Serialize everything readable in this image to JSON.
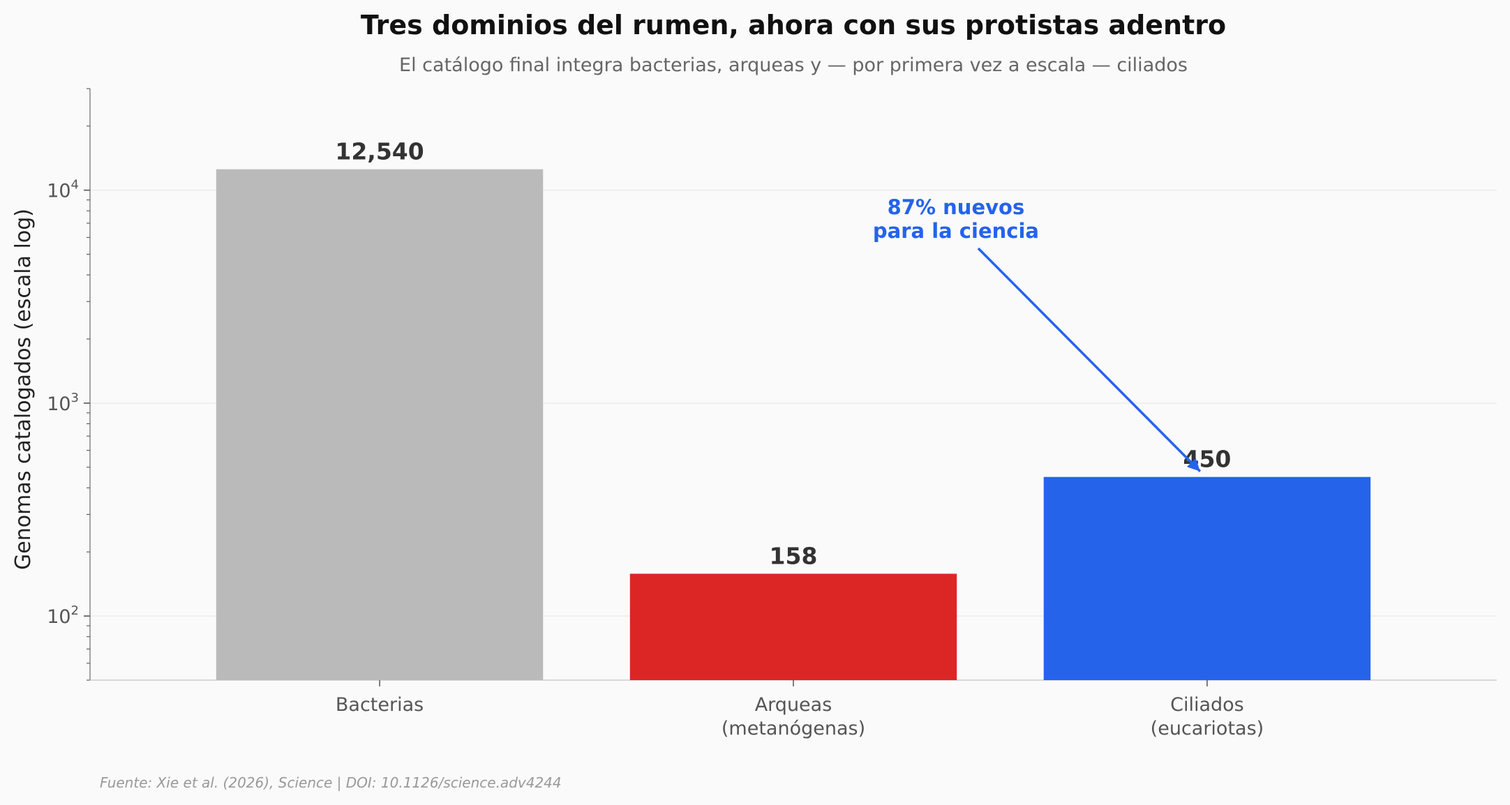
{
  "title": "Tres dominios del rumen, ahora con sus protistas adentro",
  "subtitle": "El catálogo final integra bacterias, arqueas y — por primera vez a escala — ciliados",
  "footer": "Fuente: Xie et al. (2026), Science | DOI: 10.1126/science.adv4244",
  "chart_data": {
    "type": "bar",
    "ylabel": "Genomas catalogados (escala log)",
    "yscale": "log",
    "ylim": [
      50,
      30000
    ],
    "y_ticks": [
      {
        "base": "10",
        "exp": "2",
        "value": 100
      },
      {
        "base": "10",
        "exp": "3",
        "value": 1000
      },
      {
        "base": "10",
        "exp": "4",
        "value": 10000
      }
    ],
    "grid": "y-major",
    "categories": [
      [
        "Bacterias"
      ],
      [
        "Arqueas",
        "(metanógenas)"
      ],
      [
        "Ciliados",
        "(eucariotas)"
      ]
    ],
    "values": [
      12540,
      158,
      450
    ],
    "value_labels": [
      "12,540",
      "158",
      "450"
    ],
    "colors": [
      "#bababa",
      "#dc2626",
      "#2563eb"
    ],
    "annotation": {
      "lines": [
        "87% nuevos",
        "para la ciencia"
      ],
      "target_category_index": 2,
      "color": "#2563eb"
    }
  }
}
